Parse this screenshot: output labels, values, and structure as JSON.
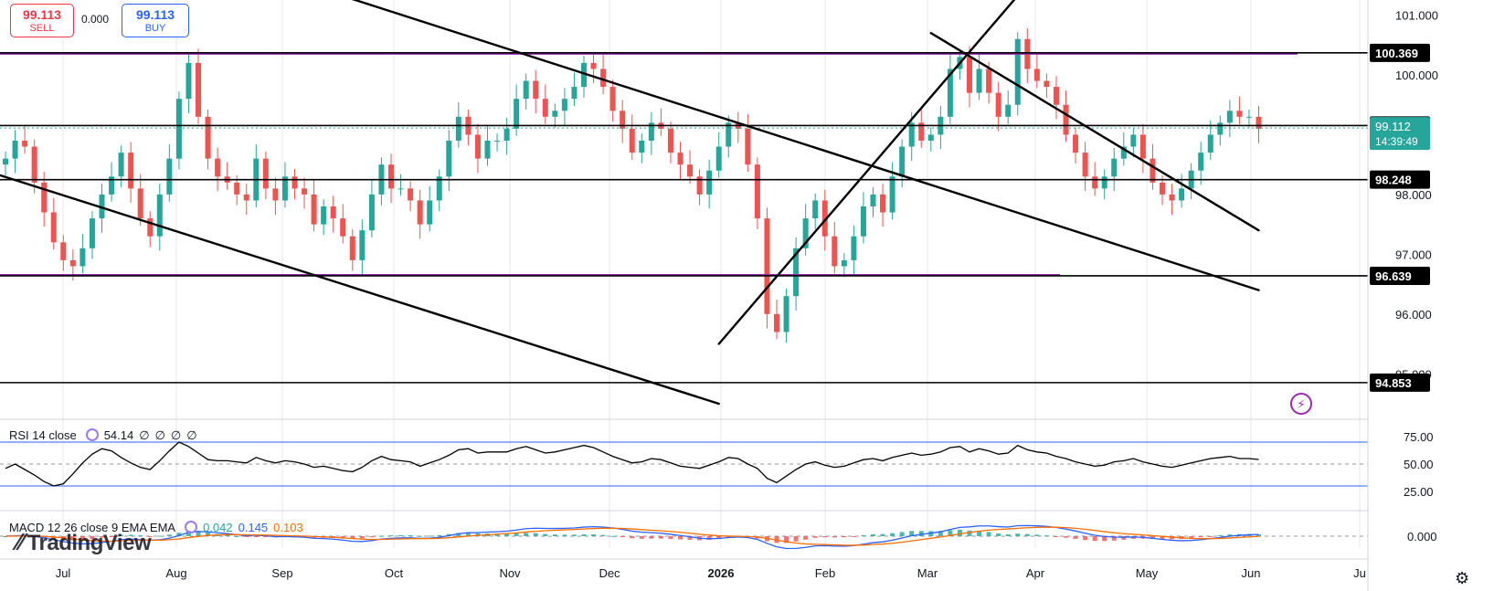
{
  "trade": {
    "sell_price": "99.113",
    "sell_label": "SELL",
    "spread": "0.000",
    "buy_price": "99.113",
    "buy_label": "BUY"
  },
  "logo_text": "TradingView",
  "settings_icon": "gear-icon",
  "colors": {
    "up": "#26a69a",
    "down": "#ef5350",
    "support": "#9c27b0",
    "rsi_band": "#2962ff",
    "macd_line": "#2962ff",
    "signal_line": "#ff6d00"
  },
  "chart_data": [
    {
      "type": "candlestick",
      "x_axis_labels": [
        "Jul",
        "Aug",
        "Sep",
        "Oct",
        "Nov",
        "Dec",
        "2026",
        "Feb",
        "Mar",
        "Apr",
        "May",
        "Jun",
        "Ju"
      ],
      "y_axis_ticks": [
        "101.000",
        "100.000",
        "98.000",
        "97.000",
        "96.000",
        "95.000"
      ],
      "ylim": [
        94.6,
        101.5
      ],
      "horizontal_levels": [
        {
          "label": "100.369",
          "value": 100.369
        },
        {
          "label": "99.153",
          "value": 99.153
        },
        {
          "label": "98.248",
          "value": 98.248
        },
        {
          "label": "96.639",
          "value": 96.639
        },
        {
          "label": "94.853",
          "value": 94.853
        }
      ],
      "current_price": {
        "label": "99.112",
        "value": 99.112,
        "countdown": "14:39:49"
      },
      "closes": [
        98.6,
        98.9,
        98.8,
        98.2,
        97.7,
        97.2,
        96.9,
        96.8,
        97.1,
        97.6,
        98.0,
        98.3,
        98.7,
        98.1,
        97.6,
        97.3,
        98.0,
        98.6,
        99.6,
        100.2,
        99.3,
        98.6,
        98.3,
        98.2,
        98.0,
        97.9,
        98.6,
        98.1,
        97.9,
        98.3,
        98.1,
        98.0,
        97.5,
        97.8,
        97.6,
        97.3,
        96.9,
        97.4,
        98.0,
        98.5,
        98.1,
        98.1,
        97.9,
        97.5,
        97.9,
        98.3,
        98.9,
        99.3,
        99.0,
        98.6,
        98.9,
        98.9,
        99.1,
        99.6,
        99.9,
        99.6,
        99.3,
        99.4,
        99.6,
        99.8,
        100.2,
        100.1,
        99.8,
        99.4,
        99.1,
        98.7,
        98.9,
        99.2,
        99.1,
        98.7,
        98.5,
        98.3,
        98.0,
        98.4,
        98.8,
        99.2,
        99.1,
        98.5,
        97.6,
        96.0,
        95.7,
        96.3,
        97.1,
        97.6,
        97.9,
        97.3,
        96.8,
        96.9,
        97.3,
        97.8,
        98.0,
        97.7,
        98.3,
        98.8,
        99.2,
        98.9,
        99.0,
        99.3,
        100.1,
        100.3,
        99.7,
        100.1,
        99.7,
        99.3,
        99.5,
        100.6,
        100.1,
        99.9,
        99.8,
        99.5,
        99.0,
        98.7,
        98.3,
        98.1,
        98.3,
        98.6,
        98.8,
        99.0,
        98.6,
        98.2,
        98.0,
        97.9,
        98.1,
        98.4,
        98.7,
        99.0,
        99.2,
        99.4,
        99.3,
        99.3,
        99.1
      ],
      "trendlines": [
        {
          "from": [
            "Jun",
            98.6
          ],
          "to": [
            "Jan",
            94.5
          ]
        },
        {
          "from": [
            "Aug",
            102.2
          ],
          "to": [
            "Jun",
            96.4
          ]
        },
        {
          "from": [
            "Jan",
            95.5
          ],
          "to": [
            "Apr",
            101.7
          ]
        },
        {
          "from": [
            "Mar",
            100.7
          ],
          "to": [
            "Jun",
            97.4
          ]
        }
      ]
    },
    {
      "type": "line",
      "title": "RSI 14 close",
      "value": "54.14",
      "extras": [
        "∅",
        "∅",
        "∅",
        "∅"
      ],
      "y_axis_ticks": [
        "75.00",
        "50.00",
        "25.00"
      ],
      "bands": [
        70,
        50,
        30
      ],
      "values": [
        46,
        50,
        45,
        40,
        34,
        30,
        32,
        41,
        51,
        59,
        64,
        62,
        56,
        51,
        47,
        45,
        53,
        62,
        70,
        66,
        60,
        54,
        53,
        53,
        52,
        51,
        56,
        53,
        51,
        53,
        52,
        50,
        47,
        48,
        46,
        44,
        43,
        47,
        53,
        57,
        54,
        53,
        52,
        48,
        51,
        54,
        58,
        63,
        64,
        60,
        61,
        61,
        61,
        64,
        66,
        63,
        60,
        61,
        63,
        65,
        67,
        65,
        61,
        57,
        54,
        51,
        52,
        55,
        54,
        51,
        48,
        47,
        46,
        49,
        52,
        56,
        55,
        50,
        46,
        37,
        33,
        39,
        45,
        50,
        52,
        49,
        47,
        48,
        51,
        54,
        55,
        53,
        56,
        58,
        60,
        58,
        59,
        61,
        65,
        66,
        61,
        64,
        62,
        59,
        60,
        67,
        63,
        61,
        60,
        57,
        55,
        52,
        50,
        48,
        49,
        52,
        53,
        55,
        52,
        50,
        48,
        47,
        49,
        51,
        53,
        55,
        56,
        57,
        55,
        55,
        54.14
      ]
    },
    {
      "type": "line",
      "title": "MACD 12 26 close 9 EMA EMA",
      "values_shown": [
        "0.042",
        "0.145",
        "0.103"
      ],
      "y_axis_ticks": [
        "0.000"
      ],
      "series": [
        {
          "name": "MACD"
        },
        {
          "name": "Signal"
        },
        {
          "name": "Histogram"
        }
      ]
    }
  ]
}
